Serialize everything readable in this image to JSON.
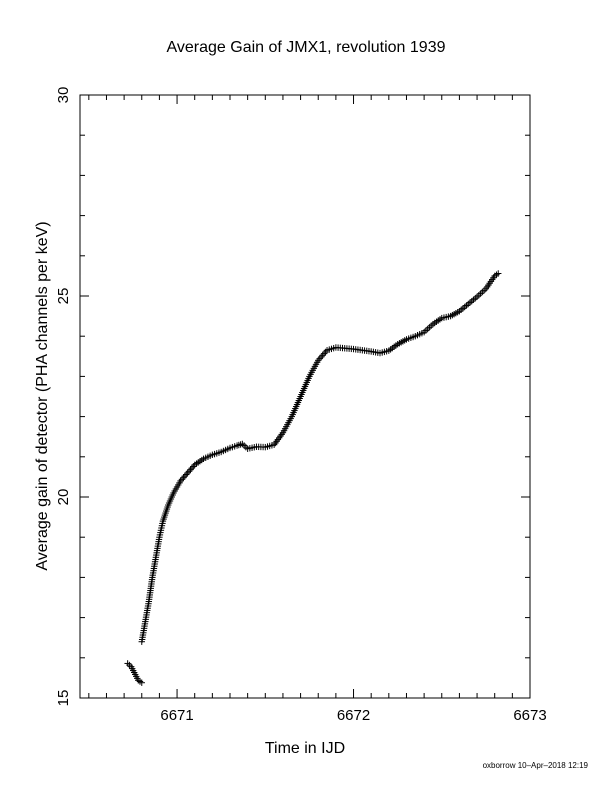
{
  "chart_data": {
    "type": "scatter",
    "title": "Average Gain of JMX1, revolution 1939",
    "xlabel": "Time in IJD",
    "ylabel": "Average gain of detector (PHA channels per keV)",
    "xlim": [
      6670.45,
      6673.0
    ],
    "ylim": [
      15,
      30
    ],
    "x_ticks": [
      6671,
      6672,
      6673
    ],
    "y_ticks": [
      15,
      20,
      25,
      30
    ],
    "x_tick_labels": [
      "6671",
      "6672",
      "6673"
    ],
    "y_tick_labels": [
      "15",
      "20",
      "25",
      "30"
    ],
    "marker": "plus",
    "grid": false,
    "series": [
      {
        "points": [
          [
            6670.72,
            15.86
          ],
          [
            6670.74,
            15.78
          ],
          [
            6670.78,
            15.44
          ],
          [
            6670.8,
            15.38
          ],
          [
            6670.8,
            16.4
          ],
          [
            6670.82,
            16.9
          ],
          [
            6670.84,
            17.4
          ],
          [
            6670.86,
            18.0
          ],
          [
            6670.88,
            18.5
          ],
          [
            6670.9,
            19.0
          ],
          [
            6670.92,
            19.4
          ],
          [
            6670.95,
            19.8
          ],
          [
            6670.98,
            20.1
          ],
          [
            6671.02,
            20.4
          ],
          [
            6671.06,
            20.6
          ],
          [
            6671.1,
            20.8
          ],
          [
            6671.15,
            20.95
          ],
          [
            6671.2,
            21.05
          ],
          [
            6671.25,
            21.12
          ],
          [
            6671.3,
            21.22
          ],
          [
            6671.34,
            21.28
          ],
          [
            6671.37,
            21.32
          ],
          [
            6671.4,
            21.2
          ],
          [
            6671.45,
            21.25
          ],
          [
            6671.5,
            21.24
          ],
          [
            6671.55,
            21.3
          ],
          [
            6671.6,
            21.6
          ],
          [
            6671.65,
            22.0
          ],
          [
            6671.7,
            22.5
          ],
          [
            6671.75,
            23.0
          ],
          [
            6671.8,
            23.4
          ],
          [
            6671.85,
            23.65
          ],
          [
            6671.9,
            23.72
          ],
          [
            6671.95,
            23.7
          ],
          [
            6672.0,
            23.68
          ],
          [
            6672.05,
            23.65
          ],
          [
            6672.1,
            23.62
          ],
          [
            6672.15,
            23.58
          ],
          [
            6672.2,
            23.64
          ],
          [
            6672.25,
            23.8
          ],
          [
            6672.3,
            23.92
          ],
          [
            6672.35,
            24.0
          ],
          [
            6672.4,
            24.1
          ],
          [
            6672.45,
            24.3
          ],
          [
            6672.5,
            24.45
          ],
          [
            6672.55,
            24.5
          ],
          [
            6672.6,
            24.62
          ],
          [
            6672.65,
            24.8
          ],
          [
            6672.7,
            24.98
          ],
          [
            6672.75,
            25.18
          ],
          [
            6672.8,
            25.5
          ],
          [
            6672.82,
            25.56
          ]
        ]
      }
    ]
  },
  "footer": {
    "text": "oxborrow 10–Apr–2018 12:19"
  }
}
